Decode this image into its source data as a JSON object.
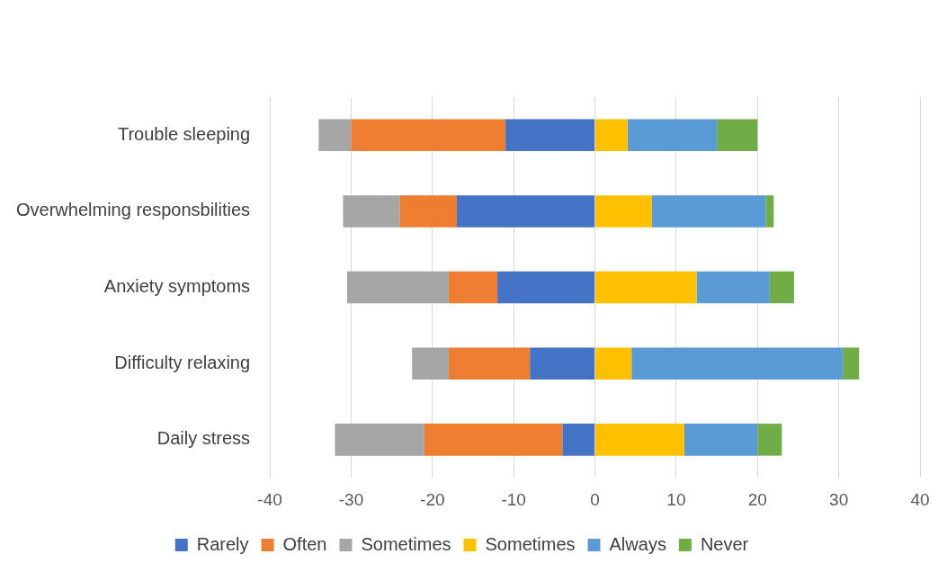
{
  "chart_data": {
    "type": "bar",
    "orientation": "horizontal",
    "stacked": true,
    "categories": [
      "Trouble sleeping",
      "Overwhelming responsbilities",
      "Anxiety symptoms",
      "Difficulty relaxing",
      "Daily stress"
    ],
    "series": [
      {
        "name": "Rarely",
        "color": "#4472c4",
        "values": [
          -11,
          -17,
          -12,
          -8,
          -4
        ]
      },
      {
        "name": "Often",
        "color": "#ed7d31",
        "values": [
          -19,
          -7,
          -6,
          -10,
          -17
        ]
      },
      {
        "name": "Sometimes",
        "color": "#a5a5a5",
        "values": [
          -4,
          -7,
          -12.5,
          -4.5,
          -11
        ]
      },
      {
        "name": "Sometimes",
        "color": "#ffc000",
        "values": [
          4,
          7,
          12.5,
          4.5,
          11
        ]
      },
      {
        "name": "Always",
        "color": "#5b9bd5",
        "values": [
          11,
          14,
          9,
          26,
          9
        ]
      },
      {
        "name": "Never",
        "color": "#70ad47",
        "values": [
          5,
          1,
          3,
          2,
          3
        ]
      }
    ],
    "xlim": [
      -40,
      40
    ],
    "xticks": [
      -40,
      -30,
      -20,
      -10,
      0,
      10,
      20,
      30,
      40
    ],
    "grid": "x",
    "legend": "bottom"
  }
}
